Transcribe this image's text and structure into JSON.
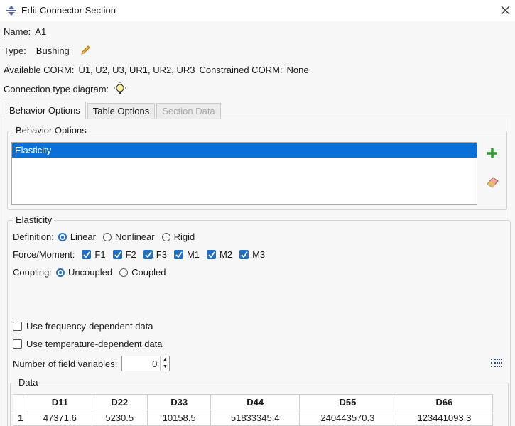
{
  "window": {
    "title": "Edit Connector Section"
  },
  "fields": {
    "name_label": "Name:",
    "name": "A1",
    "type_label": "Type:",
    "type": "Bushing",
    "corm_label": "Available CORM:",
    "corm": "U1, U2, U3, UR1, UR2, UR3",
    "constrained_label": "Constrained CORM:",
    "constrained": "None",
    "diagram_label": "Connection type diagram:"
  },
  "tabs": {
    "labels": [
      "Behavior Options",
      "Table Options",
      "Section Data"
    ],
    "active": 0,
    "disabled": [
      2
    ]
  },
  "behavior_group": {
    "title": "Behavior Options",
    "items": [
      "Elasticity"
    ],
    "selected": 0
  },
  "elasticity": {
    "title": "Elasticity",
    "definition": {
      "label": "Definition:",
      "options": [
        "Linear",
        "Nonlinear",
        "Rigid"
      ],
      "selected": 0
    },
    "force": {
      "label": "Force/Moment:",
      "options": [
        "F1",
        "F2",
        "F3",
        "M1",
        "M2",
        "M3"
      ],
      "checked": [
        true,
        true,
        true,
        true,
        true,
        true
      ]
    },
    "coupling": {
      "label": "Coupling:",
      "options": [
        "Uncoupled",
        "Coupled"
      ],
      "selected": 0
    },
    "frequency": {
      "label": "Use frequency-dependent data",
      "checked": false
    },
    "temperature": {
      "label": "Use temperature-dependent data",
      "checked": false
    },
    "field_variables": {
      "label": "Number of field variables:",
      "value": 0
    }
  },
  "data_table": {
    "title": "Data",
    "columns": [
      "D11",
      "D22",
      "D33",
      "D44",
      "D55",
      "D66"
    ],
    "rows": [
      [
        1,
        47371.6,
        5230.5,
        10158.5,
        51833345.4,
        240443570.3,
        123441093.3
      ]
    ]
  }
}
